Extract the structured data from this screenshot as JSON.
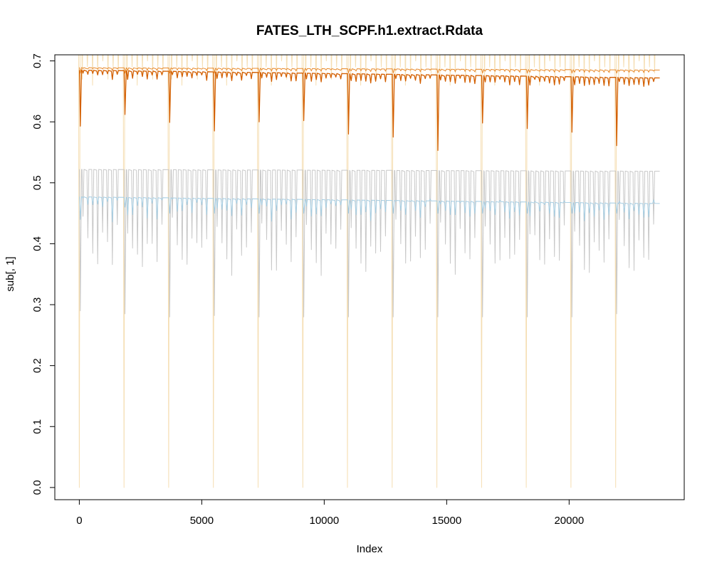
{
  "chart_data": {
    "type": "line",
    "title": "FATES_LTH_SCPF.h1.extract.Rdata",
    "xlabel": "Index",
    "ylabel": "sub[, 1]",
    "xlim": [
      -1000,
      24700
    ],
    "ylim": [
      -0.02,
      0.71
    ],
    "x_ticks": [
      0,
      5000,
      10000,
      15000,
      20000
    ],
    "x_tick_labels": [
      "0",
      "5000",
      "10000",
      "15000",
      "20000"
    ],
    "y_ticks": [
      0.0,
      0.1,
      0.2,
      0.3,
      0.4,
      0.5,
      0.6,
      0.7
    ],
    "y_tick_labels": [
      "0.0",
      "0.1",
      "0.2",
      "0.3",
      "0.4",
      "0.5",
      "0.6",
      "0.7"
    ],
    "grid": false,
    "legend": "none",
    "year_length": 1825,
    "year_starts": [
      0,
      1825,
      3650,
      5475,
      7300,
      9125,
      10950,
      12775,
      14600,
      16425,
      18250,
      20075,
      21900
    ],
    "series": [
      {
        "color": "#F5DEB3",
        "line_width": 1,
        "kind": "spiky",
        "baseline": 0.71,
        "baseline_x": [
          0,
          23700
        ],
        "annual_dips": 0.0,
        "sub_dips": [
          0.67,
          0.69,
          0.66,
          0.68,
          0.7,
          0.67,
          0.69,
          0.68
        ]
      },
      {
        "color": "#D35F00",
        "line_width": 1.3,
        "kind": "drift",
        "baseline": [
          0.685,
          0.672
        ],
        "baseline_x": [
          0,
          23700
        ],
        "annual_dips": [
          0.593,
          0.612,
          0.599,
          0.585,
          0.6,
          0.602,
          0.58,
          0.575,
          0.553,
          0.598,
          0.589,
          0.583,
          0.561
        ],
        "sub_dip_depth": 0.01
      },
      {
        "color": "#E88A2C",
        "line_width": 1,
        "kind": "drift",
        "baseline": [
          0.689,
          0.685
        ],
        "baseline_x": [
          0,
          23700
        ],
        "annual_dips": [
          0.68,
          0.68,
          0.68,
          0.68,
          0.68,
          0.68,
          0.68,
          0.68,
          0.68,
          0.68,
          0.68,
          0.68,
          0.68
        ],
        "sub_dip_depth": 0.003
      },
      {
        "color": "#C8C8C8",
        "line_width": 1,
        "kind": "drift",
        "baseline": [
          0.522,
          0.519
        ],
        "baseline_x": [
          0,
          23700
        ],
        "annual_dips": [
          0.29,
          0.285,
          0.28,
          0.282,
          0.28,
          0.28,
          0.28,
          0.28,
          0.28,
          0.28,
          0.28,
          0.28,
          0.285
        ],
        "sub_dips": [
          0.43,
          0.4,
          0.37,
          0.36,
          0.41,
          0.39,
          0.38,
          0.42
        ]
      },
      {
        "color": "#A6CEE3",
        "line_width": 1,
        "kind": "drift",
        "baseline": [
          0.477,
          0.466
        ],
        "baseline_x": [
          0,
          23700
        ],
        "annual_dips": [
          0.44,
          0.46,
          0.45,
          0.45,
          0.45,
          0.45,
          0.45,
          0.45,
          0.45,
          0.45,
          0.45,
          0.45,
          0.45
        ],
        "sub_dips": [
          0.46,
          0.455,
          0.45,
          0.458,
          0.452,
          0.456,
          0.45,
          0.46
        ]
      }
    ]
  }
}
